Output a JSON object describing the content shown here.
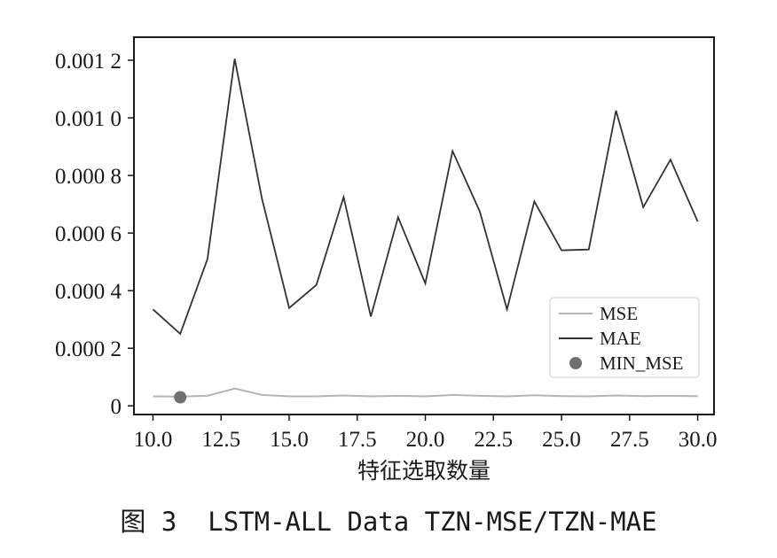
{
  "caption": "图 3  LSTM-ALL Data TZN-MSE/TZN-MAE",
  "chart_data": {
    "type": "line",
    "xlabel": "特征选取数量",
    "ylabel": "",
    "title": "",
    "xlim": [
      9.3,
      30.6
    ],
    "ylim": [
      -3e-05,
      0.00128
    ],
    "xticks": [
      10.0,
      12.5,
      15.0,
      17.5,
      20.0,
      22.5,
      25.0,
      27.5,
      30.0
    ],
    "xtick_labels": [
      "10.0",
      "12.5",
      "15.0",
      "17.5",
      "20.0",
      "22.5",
      "25.0",
      "27.5",
      "30.0"
    ],
    "yticks": [
      0,
      0.0002,
      0.0004,
      0.0006,
      0.0008,
      0.001,
      0.0012
    ],
    "ytick_labels": [
      "0",
      "0.000 2",
      "0.000 4",
      "0.000 6",
      "0.000 8",
      "0.001 0",
      "0.001 2"
    ],
    "grid": false,
    "legend_position": "lower-right",
    "x": [
      10,
      11,
      12,
      13,
      14,
      15,
      16,
      17,
      18,
      19,
      20,
      21,
      22,
      23,
      24,
      25,
      26,
      27,
      28,
      29,
      30
    ],
    "series": [
      {
        "name": "MSE",
        "color": "#b4b4b4",
        "marker": "line",
        "values": [
          3.3e-05,
          3.2e-05,
          3.5e-05,
          6e-05,
          3.8e-05,
          3.3e-05,
          3.3e-05,
          3.6e-05,
          3.3e-05,
          3.5e-05,
          3.3e-05,
          3.8e-05,
          3.5e-05,
          3.3e-05,
          3.7e-05,
          3.4e-05,
          3.3e-05,
          3.6e-05,
          3.4e-05,
          3.5e-05,
          3.4e-05
        ]
      },
      {
        "name": "MAE",
        "color": "#333333",
        "marker": "line",
        "values": [
          0.000335,
          0.00025,
          0.00051,
          0.001205,
          0.00072,
          0.00034,
          0.00042,
          0.000725,
          0.00031,
          0.000655,
          0.000425,
          0.000885,
          0.000675,
          0.000335,
          0.00071,
          0.00054,
          0.000543,
          0.001025,
          0.00069,
          0.000855,
          0.00064
        ]
      },
      {
        "name": "MIN_MSE",
        "color": "#707070",
        "marker": "point",
        "x": [
          11
        ],
        "values": [
          3e-05
        ]
      }
    ]
  }
}
